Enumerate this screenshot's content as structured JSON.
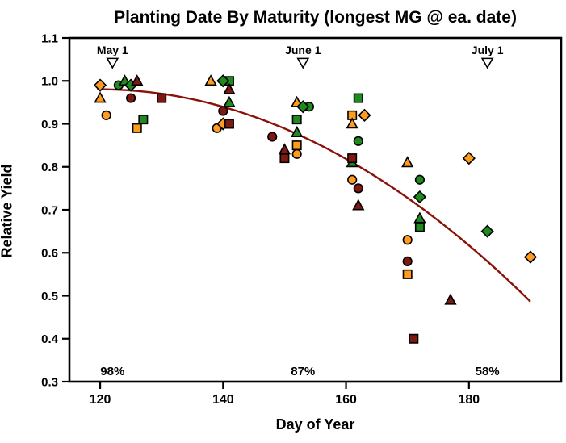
{
  "chart_data": {
    "type": "scatter",
    "title": "Planting Date By Maturity (longest MG @ ea. date)",
    "xlabel": "Day of Year",
    "ylabel": "Relative Yield",
    "xlim": [
      115,
      195
    ],
    "ylim": [
      0.3,
      1.1
    ],
    "xticks": [
      120,
      140,
      160,
      180
    ],
    "yticks": [
      0.3,
      0.4,
      0.5,
      0.6,
      0.7,
      0.8,
      0.9,
      1.0,
      1.1
    ],
    "grid": false,
    "legend": "none",
    "colors": {
      "orange": "#FF9C1E",
      "green": "#1F8B1F",
      "maroon": "#7E1810",
      "trend": "#8B1208",
      "frame": "#000000",
      "background": "#FFFFFF"
    },
    "date_markers": [
      {
        "label": "May 1",
        "day": 122,
        "marker_y": 1.042,
        "pct_label": "98%",
        "pct_y": 0.325
      },
      {
        "label": "June 1",
        "day": 153,
        "marker_y": 1.042,
        "pct_label": "87%",
        "pct_y": 0.325
      },
      {
        "label": "July 1",
        "day": 183,
        "marker_y": 1.042,
        "pct_label": "58%",
        "pct_y": 0.325
      }
    ],
    "series": [
      {
        "name": "orange-circle",
        "color": "orange",
        "shape": "circle",
        "points": [
          [
            121,
            0.92
          ],
          [
            139,
            0.89
          ],
          [
            152,
            0.83
          ],
          [
            161,
            0.77
          ],
          [
            170,
            0.63
          ]
        ]
      },
      {
        "name": "orange-square",
        "color": "orange",
        "shape": "square",
        "points": [
          [
            126,
            0.89
          ],
          [
            152,
            0.85
          ],
          [
            161,
            0.92
          ],
          [
            170,
            0.55
          ]
        ]
      },
      {
        "name": "orange-triangle",
        "color": "orange",
        "shape": "triangle",
        "points": [
          [
            120,
            0.96
          ],
          [
            138,
            1.0
          ],
          [
            152,
            0.95
          ],
          [
            161,
            0.9
          ],
          [
            170,
            0.81
          ]
        ]
      },
      {
        "name": "orange-diamond",
        "color": "orange",
        "shape": "diamond",
        "points": [
          [
            120,
            0.99
          ],
          [
            140,
            0.9
          ],
          [
            163,
            0.92
          ],
          [
            180,
            0.82
          ],
          [
            190,
            0.59
          ]
        ]
      },
      {
        "name": "green-circle",
        "color": "green",
        "shape": "circle",
        "points": [
          [
            123,
            0.99
          ],
          [
            154,
            0.94
          ],
          [
            162,
            0.86
          ],
          [
            172,
            0.77
          ]
        ]
      },
      {
        "name": "green-square",
        "color": "green",
        "shape": "square",
        "points": [
          [
            127,
            0.91
          ],
          [
            141,
            1.0
          ],
          [
            152,
            0.91
          ],
          [
            162,
            0.96
          ],
          [
            172,
            0.66
          ]
        ]
      },
      {
        "name": "green-triangle",
        "color": "green",
        "shape": "triangle",
        "points": [
          [
            124,
            1.0
          ],
          [
            141,
            0.95
          ],
          [
            152,
            0.88
          ],
          [
            161,
            0.81
          ],
          [
            172,
            0.68
          ]
        ]
      },
      {
        "name": "green-diamond",
        "color": "green",
        "shape": "diamond",
        "points": [
          [
            125,
            0.99
          ],
          [
            140,
            1.0
          ],
          [
            153,
            0.94
          ],
          [
            172,
            0.73
          ],
          [
            183,
            0.65
          ]
        ]
      },
      {
        "name": "maroon-circle",
        "color": "maroon",
        "shape": "circle",
        "points": [
          [
            125,
            0.96
          ],
          [
            140,
            0.93
          ],
          [
            148,
            0.87
          ],
          [
            162,
            0.75
          ],
          [
            170,
            0.58
          ]
        ]
      },
      {
        "name": "maroon-square",
        "color": "maroon",
        "shape": "square",
        "points": [
          [
            130,
            0.96
          ],
          [
            141,
            0.9
          ],
          [
            150,
            0.82
          ],
          [
            161,
            0.82
          ],
          [
            171,
            0.4
          ]
        ]
      },
      {
        "name": "maroon-triangle",
        "color": "maroon",
        "shape": "triangle",
        "points": [
          [
            126,
            1.0
          ],
          [
            141,
            0.98
          ],
          [
            150,
            0.84
          ],
          [
            162,
            0.71
          ],
          [
            177,
            0.49
          ]
        ]
      }
    ],
    "trend_line": {
      "type": "quadratic",
      "origin_day": 122,
      "c0": 0.98,
      "c1": -0.000439,
      "c2": -0.0001003,
      "x_domain": [
        119.5,
        190
      ]
    }
  }
}
